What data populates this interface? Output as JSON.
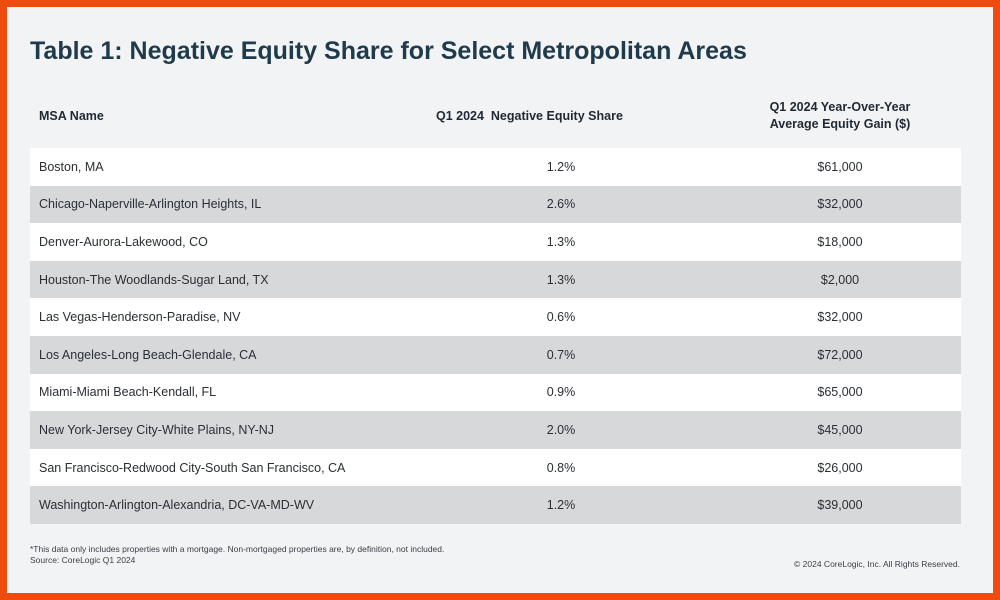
{
  "title": "Table 1: Negative Equity Share for Select Metropolitan Areas",
  "table": {
    "headers": {
      "name": "MSA Name",
      "share": "Q1 2024  Negative Equity Share",
      "gain_line1": "Q1 2024 Year-Over-Year",
      "gain_line2": "Average Equity Gain ($)"
    },
    "rows": [
      {
        "name": "Boston, MA",
        "share": "1.2%",
        "gain": "$61,000"
      },
      {
        "name": "Chicago-Naperville-Arlington Heights, IL",
        "share": "2.6%",
        "gain": "$32,000"
      },
      {
        "name": "Denver-Aurora-Lakewood, CO",
        "share": "1.3%",
        "gain": "$18,000"
      },
      {
        "name": "Houston-The Woodlands-Sugar Land, TX",
        "share": "1.3%",
        "gain": "$2,000"
      },
      {
        "name": "Las Vegas-Henderson-Paradise, NV",
        "share": "0.6%",
        "gain": "$32,000"
      },
      {
        "name": "Los Angeles-Long Beach-Glendale, CA",
        "share": "0.7%",
        "gain": "$72,000"
      },
      {
        "name": "Miami-Miami Beach-Kendall, FL",
        "share": "0.9%",
        "gain": "$65,000"
      },
      {
        "name": "New York-Jersey City-White Plains, NY-NJ",
        "share": "2.0%",
        "gain": "$45,000"
      },
      {
        "name": "San Francisco-Redwood City-South San Francisco, CA",
        "share": "0.8%",
        "gain": "$26,000"
      },
      {
        "name": "Washington-Arlington-Alexandria, DC-VA-MD-WV",
        "share": "1.2%",
        "gain": "$39,000"
      }
    ]
  },
  "footnote": {
    "line1": "*This data only includes properties with a mortgage. Non-mortgaged properties are, by definition, not included.",
    "line2": "Source: CoreLogic Q1 2024"
  },
  "copyright": "© 2024 CoreLogic, Inc. All Rights Reserved.",
  "colors": {
    "border": "#ef4b0f",
    "background": "#f2f3f5",
    "title": "#1f3a4b",
    "row_alt": "#d6d8da"
  }
}
